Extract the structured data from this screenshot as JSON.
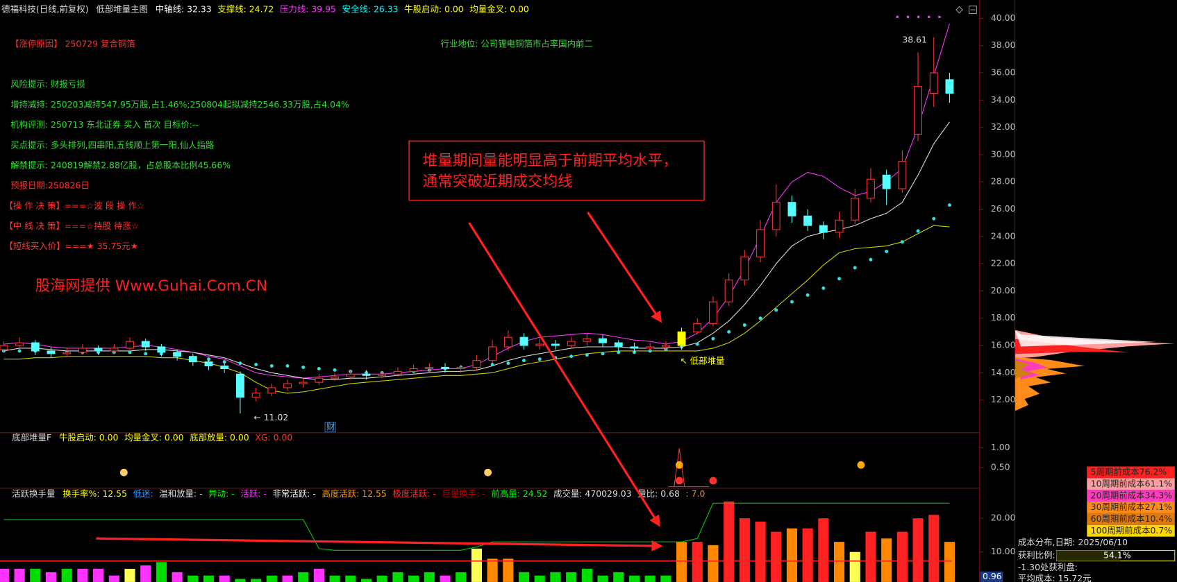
{
  "chart_data": [
    {
      "type": "candlestick",
      "title": "德福科技(日线,前复权)",
      "subtitle": "低部堆量主图",
      "items": [
        {
          "text": "中轴线: 32.33",
          "color": "#ffffff"
        },
        {
          "text": "支撑线: 24.72",
          "color": "#ffff00"
        },
        {
          "text": "压力线: 39.95",
          "color": "#ff33ff"
        },
        {
          "text": "安全线: 26.33",
          "color": "#00ffff"
        },
        {
          "text": "牛股启动: 0.00",
          "color": "#ffff00"
        },
        {
          "text": "均量金叉: 0.00",
          "color": "#ffff00"
        }
      ],
      "open": [
        15.7,
        16.0,
        16.2,
        15.6,
        15.4,
        15.5,
        15.8,
        15.6,
        15.8,
        16.3,
        15.9,
        15.5,
        15.2,
        14.8,
        14.5,
        13.9,
        12.2,
        12.5,
        12.9,
        13.2,
        13.3,
        13.6,
        13.7,
        13.9,
        13.8,
        13.9,
        14.1,
        14.3,
        14.4,
        14.3,
        14.4,
        14.9,
        15.9,
        16.6,
        16.0,
        16.1,
        16.0,
        16.3,
        16.5,
        16.2,
        15.9,
        15.8,
        15.9,
        16.0,
        17.0,
        17.6,
        19.2,
        20.8,
        22.5,
        24.5,
        26.5,
        25.5,
        24.8,
        24.3,
        25.2,
        26.8,
        28.5,
        27.5,
        31.5,
        34.5,
        35.5
      ],
      "high": [
        16.3,
        16.6,
        16.4,
        15.9,
        15.8,
        16.1,
        16.0,
        16.1,
        16.6,
        16.5,
        16.1,
        15.7,
        15.4,
        15.0,
        14.8,
        14.1,
        12.9,
        13.2,
        13.5,
        13.6,
        13.9,
        14.0,
        14.2,
        14.2,
        14.1,
        14.4,
        14.6,
        14.7,
        14.7,
        14.6,
        15.3,
        16.4,
        17.1,
        16.9,
        16.5,
        16.4,
        16.6,
        16.9,
        16.8,
        16.4,
        16.2,
        16.2,
        16.3,
        17.3,
        18.0,
        19.6,
        21.3,
        23.0,
        25.2,
        27.8,
        27.0,
        26.0,
        25.1,
        25.8,
        27.5,
        29.0,
        28.9,
        30.3,
        37.5,
        38.61,
        36.0
      ],
      "low": [
        15.5,
        15.8,
        15.3,
        15.1,
        15.2,
        15.3,
        15.3,
        15.4,
        15.6,
        15.6,
        15.2,
        14.9,
        14.5,
        14.2,
        14.0,
        11.02,
        11.9,
        12.3,
        12.7,
        12.9,
        13.1,
        13.4,
        13.5,
        13.5,
        13.6,
        13.7,
        13.9,
        14.0,
        14.0,
        14.0,
        14.2,
        14.7,
        15.6,
        15.7,
        15.7,
        15.7,
        15.8,
        16.0,
        15.9,
        15.6,
        15.5,
        15.6,
        15.6,
        15.7,
        16.8,
        17.4,
        18.9,
        20.4,
        22.1,
        24.0,
        25.0,
        24.4,
        23.8,
        23.9,
        24.9,
        26.5,
        26.3,
        27.2,
        31.0,
        33.5,
        33.8
      ],
      "close": [
        16.0,
        16.2,
        15.6,
        15.4,
        15.5,
        15.8,
        15.6,
        15.8,
        16.3,
        15.9,
        15.5,
        15.2,
        14.8,
        14.5,
        14.3,
        12.2,
        12.5,
        12.9,
        13.2,
        13.3,
        13.6,
        13.7,
        13.9,
        13.8,
        13.9,
        14.1,
        14.3,
        14.4,
        14.3,
        14.4,
        14.9,
        15.9,
        16.6,
        16.0,
        16.1,
        16.0,
        16.3,
        16.5,
        16.2,
        15.9,
        15.8,
        15.9,
        16.0,
        17.0,
        17.6,
        19.2,
        20.8,
        22.5,
        24.5,
        26.5,
        25.5,
        24.8,
        24.3,
        25.2,
        26.8,
        28.2,
        27.5,
        29.5,
        35.0,
        36.0,
        34.5
      ],
      "up_color": "#ff3232",
      "down_color": "#54ffff",
      "highlight_color": "#ffff00",
      "lines": [
        {
          "color": "#ff33ff",
          "values": [
            16.1,
            16.2,
            16.1,
            15.9,
            15.8,
            15.8,
            15.8,
            15.8,
            15.9,
            16.0,
            15.9,
            15.7,
            15.5,
            15.2,
            15.0,
            14.5,
            14.0,
            13.8,
            13.7,
            13.6,
            13.7,
            13.8,
            13.9,
            13.9,
            13.9,
            14.0,
            14.1,
            14.2,
            14.3,
            14.3,
            14.6,
            15.2,
            15.8,
            16.3,
            16.6,
            16.7,
            16.8,
            16.9,
            16.8,
            16.6,
            16.4,
            16.3,
            16.1,
            16.3,
            16.9,
            18.0,
            19.6,
            21.6,
            24.0,
            26.5,
            28.0,
            28.7,
            28.4,
            27.6,
            27.0,
            27.3,
            28.0,
            29.0,
            32.0,
            35.8,
            39.6
          ]
        },
        {
          "color": "#dddddd",
          "values": [
            15.6,
            15.8,
            15.8,
            15.7,
            15.6,
            15.6,
            15.6,
            15.6,
            15.6,
            15.7,
            15.7,
            15.6,
            15.5,
            15.3,
            15.1,
            14.7,
            14.3,
            14.0,
            13.8,
            13.6,
            13.5,
            13.5,
            13.6,
            13.6,
            13.7,
            13.8,
            13.9,
            14.0,
            14.1,
            14.1,
            14.2,
            14.5,
            14.9,
            15.2,
            15.4,
            15.6,
            15.8,
            15.9,
            15.9,
            15.9,
            15.8,
            15.8,
            15.8,
            15.9,
            16.2,
            16.9,
            17.8,
            19.0,
            20.4,
            22.0,
            23.3,
            24.0,
            24.3,
            24.5,
            24.8,
            25.3,
            25.7,
            26.5,
            28.5,
            30.8,
            32.4
          ]
        },
        {
          "color": "#d0d000",
          "values": [
            15.0,
            15.0,
            15.1,
            15.1,
            15.2,
            15.2,
            15.2,
            15.2,
            15.2,
            15.2,
            15.1,
            15.1,
            14.9,
            14.7,
            14.4,
            14.0,
            13.3,
            12.7,
            12.5,
            12.6,
            12.8,
            13.0,
            13.2,
            13.3,
            13.4,
            13.5,
            13.6,
            13.7,
            13.8,
            13.8,
            13.9,
            14.0,
            14.3,
            14.6,
            14.8,
            15.0,
            15.2,
            15.4,
            15.5,
            15.6,
            15.6,
            15.6,
            15.6,
            15.6,
            15.6,
            15.8,
            16.2,
            16.9,
            17.8,
            18.8,
            19.8,
            20.8,
            21.9,
            22.8,
            23.1,
            23.2,
            23.3,
            23.6,
            24.2,
            24.8,
            24.7
          ]
        }
      ],
      "dots": {
        "color": "#33e0e0",
        "values": [
          15.6,
          15.6,
          15.6,
          15.5,
          15.5,
          15.5,
          15.5,
          15.5,
          15.5,
          15.4,
          15.4,
          15.3,
          15.1,
          15.0,
          14.8,
          14.7,
          14.6,
          14.5,
          14.5,
          14.4,
          14.3,
          14.2,
          14.1,
          14.0,
          14.0,
          14.0,
          14.1,
          14.2,
          14.3,
          14.4,
          14.5,
          14.6,
          14.7,
          14.9,
          15.0,
          15.1,
          15.2,
          15.3,
          15.4,
          15.5,
          15.5,
          15.6,
          15.7,
          15.9,
          16.1,
          16.5,
          17.0,
          17.5,
          18.0,
          18.6,
          19.2,
          19.7,
          20.2,
          20.9,
          21.7,
          22.3,
          22.9,
          23.6,
          24.4,
          25.3,
          26.3
        ]
      },
      "ylim": [
        9.6,
        40.9
      ],
      "yticks": [
        {
          "value": 12,
          "label": "12.00"
        },
        {
          "value": 14,
          "label": "14.00"
        },
        {
          "value": 16,
          "label": "16.00"
        },
        {
          "value": 18,
          "label": "18.00"
        },
        {
          "value": 20,
          "label": "20.00"
        },
        {
          "value": 22,
          "label": "22.00"
        },
        {
          "value": 24,
          "label": "24.00"
        },
        {
          "value": 26,
          "label": "26.00"
        },
        {
          "value": 28,
          "label": "28.00"
        },
        {
          "value": 30,
          "label": "30.00"
        },
        {
          "value": 32,
          "label": "32.00"
        },
        {
          "value": 34,
          "label": "34.00"
        },
        {
          "value": 36,
          "label": "36.00"
        },
        {
          "value": 38,
          "label": "38.00"
        },
        {
          "value": 40,
          "label": "40.00"
        }
      ],
      "annotations": [
        "38.61",
        "← 11.02",
        "↖ 低部堆量",
        "财"
      ]
    },
    {
      "type": "signal",
      "title": "底部堆量F",
      "items": [
        {
          "text": "牛股启动: 0.00",
          "color": "#ffff00"
        },
        {
          "text": "均量金叉: 0.00",
          "color": "#ffff00"
        },
        {
          "text": "底部放量: 0.00",
          "color": "#ffff00"
        },
        {
          "text": "XG: 0.00",
          "color": "#ff3333"
        }
      ],
      "ylim": [
        -0.02,
        1.38
      ],
      "yticks": [
        {
          "value": 0.5,
          "label": "0.50"
        },
        {
          "value": 1,
          "label": "1.00"
        }
      ]
    },
    {
      "type": "bar",
      "title": "活跃换手量",
      "items": [
        {
          "text": "换手率%: 12.55",
          "color": "#ffff00"
        },
        {
          "text": "低迷:",
          "color": "#3399ff"
        },
        {
          "text": "温和放量: -",
          "color": "#dddddd"
        },
        {
          "text": "异动: -",
          "color": "#00ff00"
        },
        {
          "text": "活跃: -",
          "color": "#ff33ff"
        },
        {
          "text": "非常活跃: -",
          "color": "#ffffff"
        },
        {
          "text": "高度活跃: 12.55",
          "color": "#ff9900"
        },
        {
          "text": "极度活跃: -",
          "color": "#ff3333"
        },
        {
          "text": "巨量换手: -",
          "color": "#cc0000"
        },
        {
          "text": "前高量: 24.52",
          "color": "#00ff00"
        },
        {
          "text": "成交量: 470029.03",
          "color": "#dddddd"
        },
        {
          "text": "量比: 0.68",
          "color": "#dddddd"
        },
        {
          "text": ": 7.0",
          "color": "#ff8800"
        }
      ],
      "values": [
        5,
        5,
        5,
        4,
        5,
        5,
        5,
        3,
        5,
        6,
        7,
        4,
        3,
        3,
        3,
        2,
        2,
        3,
        3,
        4,
        5,
        3,
        3,
        2,
        3,
        4,
        3,
        4,
        3,
        4,
        11,
        8,
        8,
        4,
        3,
        4,
        4,
        5,
        3,
        4,
        3,
        3,
        3,
        13,
        13,
        12,
        25,
        20,
        19,
        16,
        17,
        17,
        20,
        13,
        10,
        16,
        14,
        16,
        20,
        21,
        13
      ],
      "colors": [
        "#ff33ff",
        "#ff33ff",
        "#00dd00",
        "#ff33ff",
        "#00dd00",
        "#ff33ff",
        "#ff33ff",
        "#ff33ff",
        "#ffff55",
        "#ff33ff",
        "#00dd00",
        "#ff33ff",
        "#00dd00",
        "#00dd00",
        "#ff33ff",
        "#00dd00",
        "#00dd00",
        "#00dd00",
        "#ff33ff",
        "#00dd00",
        "#ff33ff",
        "#00dd00",
        "#00dd00",
        "#00dd00",
        "#00dd00",
        "#00dd00",
        "#00dd00",
        "#00dd00",
        "#ff33ff",
        "#00dd00",
        "#ffff55",
        "#ff8800",
        "#ff8800",
        "#00dd00",
        "#00dd00",
        "#00dd00",
        "#00dd00",
        "#00dd00",
        "#00dd00",
        "#00dd00",
        "#00dd00",
        "#00dd00",
        "#00dd00",
        "#ff8800",
        "#ff2222",
        "#ff8800",
        "#ff2222",
        "#ff2222",
        "#ff2222",
        "#ff2222",
        "#ff8800",
        "#ff2222",
        "#ff2222",
        "#ff8800",
        "#ffff55",
        "#ff2222",
        "#ff8800",
        "#ff2222",
        "#ff2222",
        "#ff2222",
        "#ff8800"
      ],
      "lines": [
        {
          "color": "#00cc00",
          "values": [
            19.6,
            19.6,
            19.6,
            19.6,
            19.6,
            19.6,
            19.6,
            19.6,
            19.6,
            19.6,
            19.6,
            19.6,
            19.6,
            19.6,
            19.6,
            19.6,
            19.6,
            19.6,
            19.6,
            19.6,
            11,
            10.5,
            10.5,
            10.5,
            10.5,
            10.5,
            10.5,
            10.5,
            10.5,
            10.5,
            11.5,
            13,
            13,
            13,
            13,
            13,
            13,
            13,
            13,
            13,
            13,
            13,
            13,
            13,
            14,
            24.5,
            24.5,
            24.5,
            24.5,
            24.5,
            24.5,
            24.5,
            24.5,
            24.5,
            24.5,
            24.5,
            24.5,
            24.5,
            24.5,
            24.5,
            24.5
          ]
        }
      ],
      "reference_line": {
        "value": 7.3,
        "color": "#ff2020"
      },
      "current_label": "0.96",
      "ylim": [
        1.1,
        28.7
      ],
      "yticks": [
        {
          "value": 10,
          "label": "10.00"
        },
        {
          "value": 20,
          "label": "20.00"
        }
      ]
    }
  ],
  "info_lines": [
    {
      "text": "【涨停原因】  250729 复合铜箔",
      "color": "#ff3333"
    },
    {
      "text": "风险提示: 财报亏损",
      "color": "#33dd33"
    },
    {
      "text": "增持减持: 250203减持547.95万股,占1.46%;250804起拟减持2546.33万股,占4.04%",
      "color": "#33dd33"
    },
    {
      "text": "机构评测: 250713 东北证券 买入 首次 目标价:--",
      "color": "#33dd33"
    },
    {
      "text": "买点提示: 多头排列,四串阳,五线顺上第一阳,仙人指路",
      "color": "#33dd33"
    },
    {
      "text": "解禁提示: 240819解禁2.88亿股，占总股本比例45.66%",
      "color": "#33dd33"
    },
    {
      "text": "预报日期:250826日",
      "color": "#ff3333"
    },
    {
      "text": "【操 作 决 策】===☆波 段 操 作☆",
      "color": "#ff3333"
    },
    {
      "text": "【中 线 决 策】===☆持股 待涨☆",
      "color": "#ff3333"
    },
    {
      "text": "【短线买入价】===★ 35.75元★",
      "color": "#ff3333"
    }
  ],
  "industry": "行业地位: 公司锂电铜箔市占率国内前二",
  "watermark": "股海网提供 Www.Guhai.Com.CN",
  "callout": [
    "堆量期间量能明显高于前期平均水平，",
    "通常突破近期成交均线"
  ],
  "cost_panel": {
    "rows": [
      {
        "text": "5周期前成本76.2%",
        "color": "#ff2020"
      },
      {
        "text": "10周期前成本61.1%",
        "color": "#ff9e9e"
      },
      {
        "text": "20周期前成本34.3%",
        "color": "#ff3cbe"
      },
      {
        "text": "30周期前成本27.1%",
        "color": "#ff8c1a"
      },
      {
        "text": "60周期前成本10.4%",
        "color": "#e07a10"
      },
      {
        "text": "100周期前成本0.7%",
        "color": "#ffd700"
      }
    ],
    "date": "成本分布,日期: 2025/06/10",
    "profit_label": "获利比例:",
    "profit_ratio": 54.1,
    "profit_text": "54.1%",
    "profit_at": "-1.30处获利盘:",
    "avg_cost": "平均成本: 15.72元"
  }
}
